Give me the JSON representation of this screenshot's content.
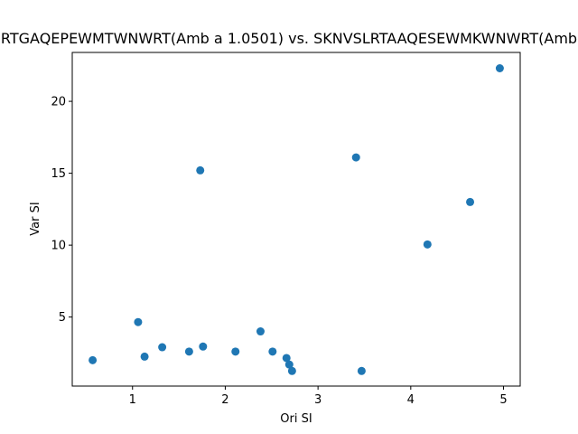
{
  "chart_data": {
    "type": "scatter",
    "title": "RTGAQEPEWMTWNWRT(Amb a 1.0501) vs. SKNVSLRTAAQESEWMKWNWRT(Amb",
    "xlabel": "Ori SI",
    "ylabel": "Var SI",
    "xlim": [
      0.35,
      5.18
    ],
    "ylim": [
      0.2,
      23.4
    ],
    "xticks": [
      1,
      2,
      3,
      4,
      5
    ],
    "yticks": [
      5,
      10,
      15,
      20
    ],
    "grid": false,
    "marker_color": "#1f77b4",
    "points": [
      {
        "x": 0.57,
        "y": 2.0
      },
      {
        "x": 1.06,
        "y": 4.65
      },
      {
        "x": 1.13,
        "y": 2.25
      },
      {
        "x": 1.32,
        "y": 2.9
      },
      {
        "x": 1.61,
        "y": 2.6
      },
      {
        "x": 1.73,
        "y": 15.2
      },
      {
        "x": 1.76,
        "y": 2.95
      },
      {
        "x": 2.11,
        "y": 2.6
      },
      {
        "x": 2.38,
        "y": 4.0
      },
      {
        "x": 2.51,
        "y": 2.6
      },
      {
        "x": 2.66,
        "y": 2.15
      },
      {
        "x": 2.69,
        "y": 1.7
      },
      {
        "x": 2.72,
        "y": 1.25
      },
      {
        "x": 3.41,
        "y": 16.1
      },
      {
        "x": 3.47,
        "y": 1.25
      },
      {
        "x": 4.18,
        "y": 10.05
      },
      {
        "x": 4.64,
        "y": 13.0
      },
      {
        "x": 4.96,
        "y": 22.3
      }
    ]
  }
}
